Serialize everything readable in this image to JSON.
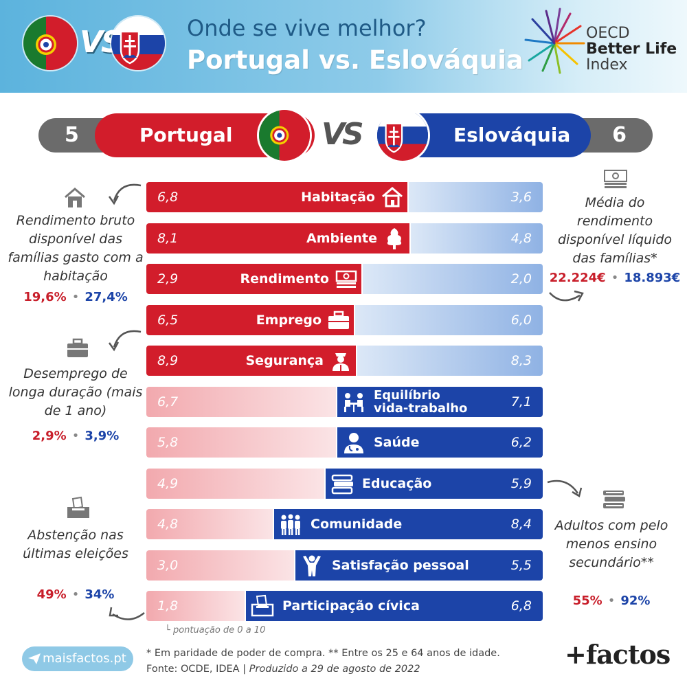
{
  "header": {
    "title_line1": "Onde se vive melhor?",
    "title_line2": "Portugal vs. Eslováquia",
    "vs_label": "VS",
    "oecd_lines": [
      "OECD",
      "Better Life",
      "Index"
    ]
  },
  "scoreboard": {
    "left_country": "Portugal",
    "left_score": "5",
    "right_country": "Eslováquia",
    "right_score": "6",
    "vs_label": "VS"
  },
  "colors": {
    "portugal_red": "#d21d2b",
    "slovakia_blue": "#1c44a8",
    "header_blue": "#5cb3dd"
  },
  "chart_data": {
    "type": "bar",
    "title": "",
    "scale_note": "pontuação de 0 a 10",
    "ylim": [
      0,
      10
    ],
    "categories": [
      "Habitação",
      "Ambiente",
      "Rendimento",
      "Emprego",
      "Segurança",
      "Equilíbrio vida-trabalho",
      "Saúde",
      "Educação",
      "Comunidade",
      "Satisfação pessoal",
      "Participação cívica"
    ],
    "category_icons": [
      "house-icon",
      "tree-icon",
      "money-icon",
      "briefcase-icon",
      "police-icon",
      "work-life-icon",
      "doctor-icon",
      "books-icon",
      "people-icon",
      "person-arms-up-icon",
      "ballot-box-icon"
    ],
    "series": [
      {
        "name": "Portugal",
        "values": [
          6.8,
          8.1,
          2.9,
          6.5,
          8.9,
          6.7,
          5.8,
          4.9,
          4.8,
          3.0,
          1.8
        ],
        "labels": [
          "6,8",
          "8,1",
          "2,9",
          "6,5",
          "8,9",
          "6,7",
          "5,8",
          "4,9",
          "4,8",
          "3,0",
          "1,8"
        ]
      },
      {
        "name": "Eslováquia",
        "values": [
          3.6,
          4.8,
          2.0,
          6.0,
          8.3,
          7.1,
          6.2,
          5.9,
          8.4,
          5.5,
          6.8
        ],
        "labels": [
          "3,6",
          "4,8",
          "2,0",
          "6,0",
          "8,3",
          "7,1",
          "6,2",
          "5,9",
          "8,4",
          "5,5",
          "6,8"
        ]
      }
    ]
  },
  "side_notes": {
    "housing": {
      "label": "Rendimento bruto disponível das famílias gasto com a habitação",
      "pt": "19,6%",
      "sk": "27,4%"
    },
    "unemployment": {
      "label": "Desemprego de longa duração (mais de 1 ano)",
      "pt": "2,9%",
      "sk": "3,9%"
    },
    "abstention": {
      "label": "Abstenção nas últimas eleições",
      "pt": "49%",
      "sk": "34%"
    },
    "income": {
      "label": "Média do rendimento disponível líquido das famílias*",
      "pt": "22.224€",
      "sk": "18.893€"
    },
    "education": {
      "label": "Adultos com pelo menos ensino secundário**",
      "pt": "55%",
      "sk": "92%"
    }
  },
  "footer": {
    "site": "maisfactos.pt",
    "note1": "* Em paridade de poder de compra. ** Entre os 25 e 64 anos de idade.",
    "source": "Fonte: OCDE, IDEA | ",
    "produced": "Produzido a 29 de agosto de 2022",
    "brand": "+factos"
  }
}
